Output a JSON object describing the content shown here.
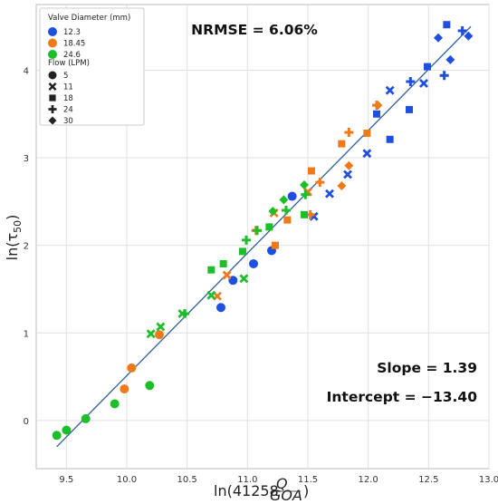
{
  "chart_data": {
    "type": "scatter",
    "xlabel": "ln(41258 Q/GOA)",
    "ylabel": "ln(τ50)",
    "xlim": [
      9.25,
      13.0
    ],
    "ylim": [
      -0.55,
      4.75
    ],
    "xticks": [
      "9.5",
      "10.0",
      "10.5",
      "11.0",
      "11.5",
      "12.0",
      "12.5",
      "13.0"
    ],
    "yticks": [
      "0",
      "1",
      "2",
      "3",
      "4"
    ],
    "grid": true,
    "legend_placement": "top-left",
    "legend": {
      "diameter_title": "Valve Diameter (mm)",
      "diameters": [
        {
          "label": "12.3",
          "color": "#1f4fe0"
        },
        {
          "label": "18.45",
          "color": "#f07a1a"
        },
        {
          "label": "24.6",
          "color": "#1cbf2a"
        }
      ],
      "flow_title": "Flow (LPM)",
      "flows": [
        {
          "label": "5",
          "marker": "circle"
        },
        {
          "label": "11",
          "marker": "x"
        },
        {
          "label": "18",
          "marker": "square"
        },
        {
          "label": "24",
          "marker": "plus"
        },
        {
          "label": "30",
          "marker": "diamond"
        }
      ]
    },
    "annotations": {
      "nrmse": "NRMSE = 6.06%",
      "slope": "Slope = 1.39",
      "intercept": "Intercept = −13.40"
    },
    "fit_line": {
      "x": [
        9.42,
        12.85
      ],
      "y": [
        -0.3,
        4.5
      ]
    },
    "series": [
      {
        "diameter": "12.3",
        "points": [
          {
            "x": 10.78,
            "y": 1.29,
            "m": "circle"
          },
          {
            "x": 10.88,
            "y": 1.6,
            "m": "circle"
          },
          {
            "x": 11.05,
            "y": 1.79,
            "m": "circle"
          },
          {
            "x": 11.2,
            "y": 1.94,
            "m": "circle"
          },
          {
            "x": 11.37,
            "y": 2.56,
            "m": "circle"
          },
          {
            "x": 11.55,
            "y": 2.33,
            "m": "x"
          },
          {
            "x": 11.68,
            "y": 2.59,
            "m": "x"
          },
          {
            "x": 11.83,
            "y": 2.81,
            "m": "x"
          },
          {
            "x": 11.99,
            "y": 3.05,
            "m": "x"
          },
          {
            "x": 12.18,
            "y": 3.77,
            "m": "x"
          },
          {
            "x": 12.46,
            "y": 3.85,
            "m": "x"
          },
          {
            "x": 12.07,
            "y": 3.5,
            "m": "square"
          },
          {
            "x": 12.18,
            "y": 3.21,
            "m": "square"
          },
          {
            "x": 12.34,
            "y": 3.55,
            "m": "square"
          },
          {
            "x": 12.49,
            "y": 4.04,
            "m": "square"
          },
          {
            "x": 12.65,
            "y": 4.52,
            "m": "square"
          },
          {
            "x": 12.35,
            "y": 3.87,
            "m": "plus"
          },
          {
            "x": 12.63,
            "y": 3.94,
            "m": "plus"
          },
          {
            "x": 12.78,
            "y": 4.45,
            "m": "plus"
          },
          {
            "x": 12.58,
            "y": 4.37,
            "m": "diamond"
          },
          {
            "x": 12.68,
            "y": 4.12,
            "m": "diamond"
          },
          {
            "x": 12.83,
            "y": 4.39,
            "m": "diamond"
          }
        ]
      },
      {
        "diameter": "18.45",
        "points": [
          {
            "x": 9.98,
            "y": 0.36,
            "m": "circle"
          },
          {
            "x": 10.04,
            "y": 0.6,
            "m": "circle"
          },
          {
            "x": 10.27,
            "y": 0.98,
            "m": "circle"
          },
          {
            "x": 10.75,
            "y": 1.42,
            "m": "x"
          },
          {
            "x": 10.83,
            "y": 1.66,
            "m": "x"
          },
          {
            "x": 11.22,
            "y": 2.37,
            "m": "x"
          },
          {
            "x": 11.5,
            "y": 2.61,
            "m": "x"
          },
          {
            "x": 11.23,
            "y": 2.0,
            "m": "square"
          },
          {
            "x": 11.33,
            "y": 2.29,
            "m": "square"
          },
          {
            "x": 11.53,
            "y": 2.85,
            "m": "square"
          },
          {
            "x": 11.78,
            "y": 3.16,
            "m": "square"
          },
          {
            "x": 11.99,
            "y": 3.28,
            "m": "square"
          },
          {
            "x": 11.07,
            "y": 2.17,
            "m": "plus"
          },
          {
            "x": 11.52,
            "y": 2.35,
            "m": "plus"
          },
          {
            "x": 11.6,
            "y": 2.72,
            "m": "plus"
          },
          {
            "x": 11.84,
            "y": 3.29,
            "m": "plus"
          },
          {
            "x": 12.07,
            "y": 3.6,
            "m": "plus"
          },
          {
            "x": 11.78,
            "y": 2.68,
            "m": "diamond"
          },
          {
            "x": 11.84,
            "y": 2.91,
            "m": "diamond"
          },
          {
            "x": 12.08,
            "y": 3.6,
            "m": "diamond"
          }
        ]
      },
      {
        "diameter": "24.6",
        "points": [
          {
            "x": 9.42,
            "y": -0.17,
            "m": "circle"
          },
          {
            "x": 9.5,
            "y": -0.11,
            "m": "circle"
          },
          {
            "x": 9.66,
            "y": 0.02,
            "m": "circle"
          },
          {
            "x": 9.9,
            "y": 0.19,
            "m": "circle"
          },
          {
            "x": 10.19,
            "y": 0.4,
            "m": "circle"
          },
          {
            "x": 10.2,
            "y": 0.99,
            "m": "x"
          },
          {
            "x": 10.28,
            "y": 1.07,
            "m": "x"
          },
          {
            "x": 10.46,
            "y": 1.22,
            "m": "x"
          },
          {
            "x": 10.7,
            "y": 1.43,
            "m": "x"
          },
          {
            "x": 10.97,
            "y": 1.62,
            "m": "x"
          },
          {
            "x": 10.7,
            "y": 1.72,
            "m": "square"
          },
          {
            "x": 10.8,
            "y": 1.79,
            "m": "square"
          },
          {
            "x": 10.96,
            "y": 1.93,
            "m": "square"
          },
          {
            "x": 11.18,
            "y": 2.21,
            "m": "square"
          },
          {
            "x": 11.47,
            "y": 2.35,
            "m": "square"
          },
          {
            "x": 10.48,
            "y": 1.22,
            "m": "plus"
          },
          {
            "x": 10.99,
            "y": 2.06,
            "m": "plus"
          },
          {
            "x": 11.08,
            "y": 2.17,
            "m": "plus"
          },
          {
            "x": 11.32,
            "y": 2.4,
            "m": "plus"
          },
          {
            "x": 11.48,
            "y": 2.58,
            "m": "plus"
          },
          {
            "x": 11.21,
            "y": 2.39,
            "m": "diamond"
          },
          {
            "x": 11.3,
            "y": 2.52,
            "m": "diamond"
          },
          {
            "x": 11.47,
            "y": 2.69,
            "m": "diamond"
          }
        ]
      }
    ]
  }
}
